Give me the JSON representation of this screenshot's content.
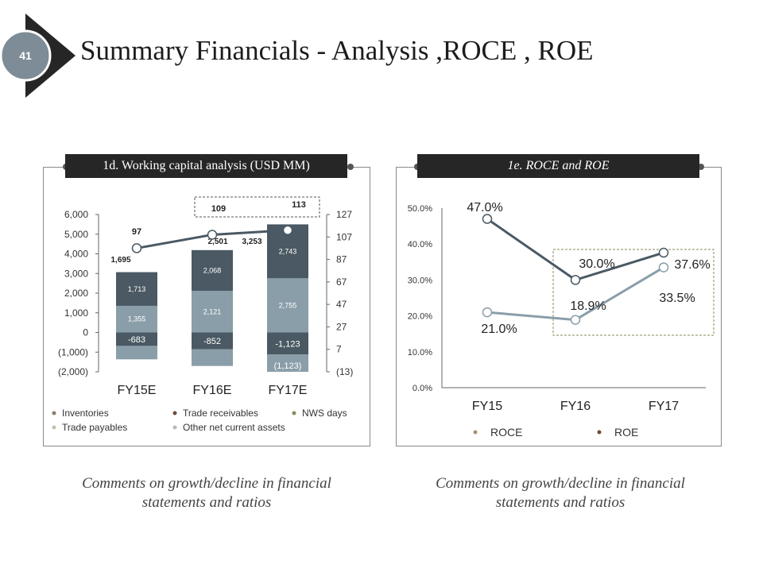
{
  "slide": {
    "number": "41",
    "title": "Summary Financials - Analysis ,ROCE , ROE",
    "colors": {
      "dark": "#262626",
      "badge": "#7d8c96",
      "text": "#1c1c1c"
    }
  },
  "panels": [
    {
      "header": "1d. Working capital analysis (USD MM)",
      "comment": "Comments on growth/decline in financial statements and ratios"
    },
    {
      "header": "1e. ROCE and ROE",
      "comment": "Comments on growth/decline in financial statements and ratios"
    }
  ],
  "chart_data": [
    {
      "type": "bar",
      "stacked": true,
      "title": "1d. Working capital analysis (USD MM)",
      "categories": [
        "FY15E",
        "FY16E",
        "FY17E"
      ],
      "ylim": [
        -2000,
        6000
      ],
      "y_ticks": [
        "6,000",
        "5,000",
        "4,000",
        "3,000",
        "2,000",
        "1,000",
        "0",
        "(1,000)",
        "(2,000)"
      ],
      "y2lim": [
        -13,
        127
      ],
      "y2_ticks": [
        "127",
        "107",
        "87",
        "67",
        "47",
        "27",
        "7",
        "(13)"
      ],
      "series": [
        {
          "name": "Inventories",
          "color": "#8a9ea9",
          "values": [
            1355,
            2121,
            2755
          ],
          "labels": [
            "1,355",
            "2,121",
            "2,755"
          ]
        },
        {
          "name": "Trade receivables",
          "color": "#4a5963",
          "values": [
            1713,
            2068,
            2743
          ],
          "labels": [
            "1,713",
            "2,068",
            "2,743"
          ]
        },
        {
          "name": "Trade payables",
          "color": "#4a5963",
          "values": [
            -683,
            -852,
            -1123
          ],
          "labels": [
            "-683",
            "-852",
            "-1,123"
          ]
        },
        {
          "name": "Other net current assets",
          "color": "#8a9ea9",
          "values": [
            -683,
            -852,
            -1123
          ]
        }
      ],
      "totals": [
        "1,695",
        "2,501",
        "3,253"
      ],
      "extra_label": "(1,123)",
      "line": {
        "name": "NWS days",
        "values": [
          97,
          109,
          113
        ],
        "labels": [
          "97",
          "109",
          "113"
        ]
      },
      "legend": [
        {
          "name": "Inventories",
          "color": "#8b7d6b"
        },
        {
          "name": "Trade receivables",
          "color": "#6b4c3a"
        },
        {
          "name": "NWS days",
          "color": "#8a8a5a"
        },
        {
          "name": "Trade payables",
          "color": "#c8bfae"
        },
        {
          "name": "Other net current assets",
          "color": "#b9b9b9"
        }
      ]
    },
    {
      "type": "line",
      "title": "1e. ROCE and ROE",
      "categories": [
        "FY15",
        "FY16",
        "FY17"
      ],
      "ylim": [
        0,
        50
      ],
      "y_ticks": [
        "0.0%",
        "10.0%",
        "20.0%",
        "30.0%",
        "40.0%",
        "50.0%"
      ],
      "series": [
        {
          "name": "ROCE",
          "color": "#4a5963",
          "values": [
            47.0,
            30.0,
            37.6
          ],
          "labels": [
            "47.0%",
            "30.0%",
            "37.6%"
          ]
        },
        {
          "name": "ROE",
          "color": "#8a9ea9",
          "values": [
            21.0,
            18.9,
            33.5
          ],
          "labels": [
            "21.0%",
            "18.9%",
            "33.5%"
          ]
        }
      ],
      "legend": [
        {
          "name": "ROCE",
          "color": "#a89070"
        },
        {
          "name": "ROE",
          "color": "#6b4c3a"
        }
      ]
    }
  ]
}
